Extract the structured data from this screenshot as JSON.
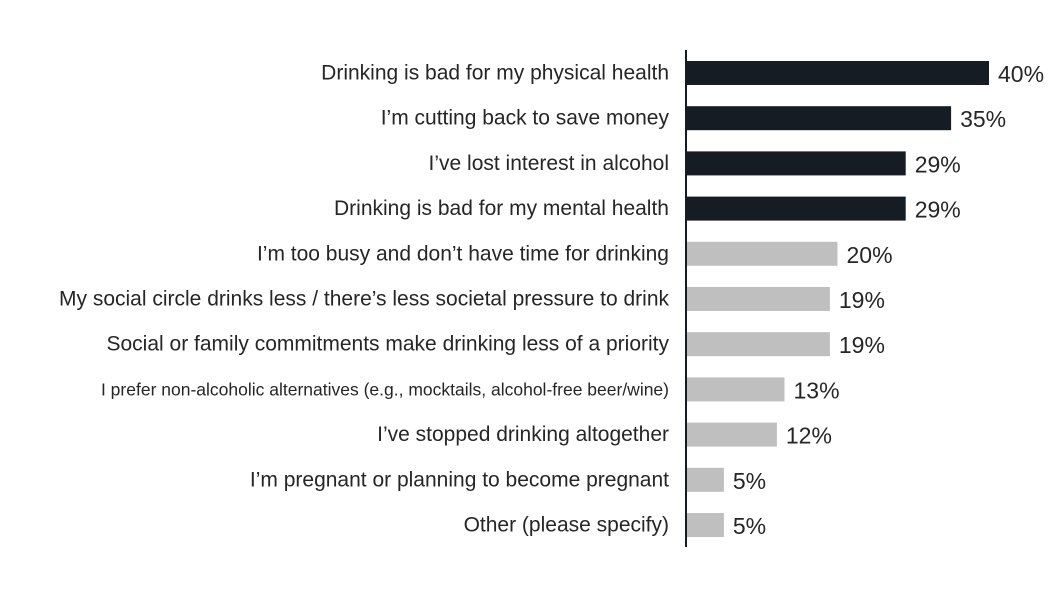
{
  "chart_data": {
    "type": "bar",
    "orientation": "horizontal",
    "title": "",
    "xlabel": "",
    "ylabel": "",
    "grid": false,
    "legend": "none",
    "xlim": [
      0,
      40
    ],
    "value_suffix": "%",
    "colors": {
      "highlight": "#151c24",
      "default": "#bfbfbf",
      "axis": "#151c24",
      "text": "#262626"
    },
    "categories": [
      "Drinking is bad for my physical health",
      "I’m cutting back to save money",
      "I’ve lost interest in alcohol",
      "Drinking is bad for my mental health",
      "I’m too busy and don’t have time for drinking",
      "My social circle drinks less / there’s less societal pressure to drink",
      "Social or family commitments make drinking less of a priority",
      "I prefer non-alcoholic  alternatives (e.g., mocktails, alcohol-free beer/wine)",
      "I’ve stopped drinking altogether",
      "I’m pregnant or planning to become pregnant",
      "Other (please specify)"
    ],
    "values": [
      40,
      35,
      29,
      29,
      20,
      19,
      19,
      13,
      12,
      5,
      5
    ],
    "value_labels": [
      "40%",
      "35%",
      "29%",
      "29%",
      "20%",
      "19%",
      "19%",
      "13%",
      "12%",
      "5%",
      "5%"
    ],
    "highlighted": [
      true,
      true,
      true,
      true,
      false,
      false,
      false,
      false,
      false,
      false,
      false
    ]
  }
}
